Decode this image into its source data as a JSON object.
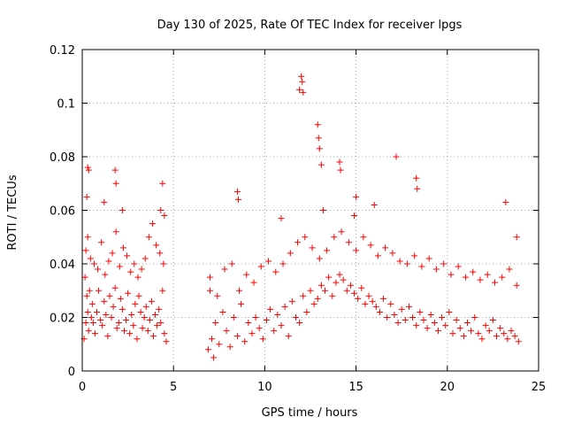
{
  "chart_data": {
    "type": "scatter",
    "title": "Day 130 of 2025, Rate Of TEC Index for receiver lpgs",
    "xlabel": "GPS time / hours",
    "ylabel": "ROTI / TECUs",
    "xlim": [
      0,
      25
    ],
    "ylim": [
      0,
      0.12
    ],
    "xticks": [
      0,
      5,
      10,
      15,
      20,
      25
    ],
    "xtick_labels": [
      "0",
      "5",
      "10",
      "15",
      "20",
      "25"
    ],
    "yticks": [
      0,
      0.02,
      0.04,
      0.06,
      0.08,
      0.1,
      0.12
    ],
    "ytick_labels": [
      "0",
      "0.02",
      "0.04",
      "0.06",
      "0.08",
      "0.1",
      "0.12"
    ],
    "grid": true,
    "marker": "plus",
    "color": "#ff0000",
    "series": [
      {
        "name": "ROTI",
        "x": [
          0.1,
          0.15,
          0.2,
          0.25,
          0.3,
          0.35,
          0.4,
          0.5,
          0.55,
          0.6,
          0.7,
          0.8,
          0.9,
          1.0,
          1.1,
          1.2,
          1.3,
          1.4,
          1.5,
          1.6,
          1.7,
          1.8,
          1.9,
          2.0,
          2.1,
          2.2,
          2.3,
          2.4,
          2.5,
          2.6,
          2.7,
          2.8,
          2.9,
          3.0,
          3.1,
          3.2,
          3.3,
          3.4,
          3.5,
          3.6,
          3.7,
          3.8,
          3.9,
          4.0,
          4.1,
          4.2,
          4.3,
          4.4,
          4.5,
          4.6,
          0.2,
          0.3,
          0.45,
          0.65,
          0.85,
          1.05,
          1.25,
          1.45,
          1.65,
          1.85,
          2.05,
          2.25,
          2.45,
          2.65,
          2.85,
          3.05,
          3.25,
          3.45,
          3.65,
          3.85,
          4.05,
          4.25,
          4.45,
          0.3,
          0.35,
          0.25,
          1.2,
          1.8,
          1.85,
          2.2,
          4.3,
          4.4,
          4.5,
          6.9,
          7.0,
          7.1,
          7.2,
          7.3,
          7.5,
          7.7,
          7.9,
          8.1,
          8.3,
          8.5,
          8.7,
          8.9,
          9.1,
          9.3,
          9.5,
          9.7,
          9.9,
          10.1,
          10.3,
          10.5,
          10.7,
          10.9,
          11.1,
          11.3,
          11.5,
          11.7,
          11.9,
          12.1,
          12.3,
          12.5,
          12.7,
          12.9,
          13.1,
          13.3,
          13.5,
          13.7,
          13.9,
          14.1,
          14.3,
          14.5,
          14.7,
          14.9,
          15.1,
          15.3,
          15.5,
          15.7,
          15.9,
          16.1,
          16.3,
          16.5,
          16.7,
          16.9,
          17.1,
          17.3,
          17.5,
          17.7,
          17.9,
          18.1,
          18.3,
          18.5,
          18.7,
          18.9,
          19.1,
          19.3,
          19.5,
          19.7,
          19.9,
          20.1,
          20.3,
          20.5,
          20.7,
          20.9,
          21.1,
          21.3,
          21.5,
          21.7,
          21.9,
          22.1,
          22.3,
          22.5,
          22.7,
          22.9,
          23.1,
          23.3,
          23.5,
          23.7,
          23.9,
          7.0,
          7.4,
          7.8,
          8.2,
          8.6,
          9.0,
          9.4,
          9.8,
          10.2,
          10.6,
          11.0,
          11.4,
          11.8,
          12.2,
          12.6,
          13.0,
          13.4,
          13.8,
          14.2,
          14.6,
          15.0,
          15.4,
          15.8,
          16.2,
          16.6,
          17.0,
          17.4,
          17.8,
          18.2,
          18.6,
          19.0,
          19.4,
          19.8,
          20.2,
          20.6,
          21.0,
          21.4,
          21.8,
          22.2,
          22.6,
          23.0,
          23.4,
          23.8,
          8.5,
          8.55,
          11.9,
          12.0,
          12.05,
          12.1,
          12.9,
          12.95,
          13.0,
          13.1,
          14.1,
          14.15,
          17.2,
          18.3,
          18.35,
          15.0,
          16.0,
          23.2,
          23.8,
          10.9,
          13.2,
          14.9
        ],
        "y": [
          0.012,
          0.035,
          0.018,
          0.028,
          0.022,
          0.015,
          0.03,
          0.02,
          0.025,
          0.018,
          0.014,
          0.022,
          0.03,
          0.019,
          0.017,
          0.026,
          0.021,
          0.013,
          0.028,
          0.02,
          0.024,
          0.031,
          0.016,
          0.018,
          0.027,
          0.023,
          0.015,
          0.019,
          0.029,
          0.014,
          0.021,
          0.017,
          0.025,
          0.012,
          0.028,
          0.022,
          0.016,
          0.02,
          0.024,
          0.015,
          0.019,
          0.026,
          0.013,
          0.021,
          0.017,
          0.023,
          0.018,
          0.03,
          0.014,
          0.011,
          0.045,
          0.05,
          0.042,
          0.04,
          0.038,
          0.048,
          0.036,
          0.041,
          0.044,
          0.052,
          0.039,
          0.046,
          0.043,
          0.037,
          0.04,
          0.035,
          0.038,
          0.042,
          0.05,
          0.055,
          0.047,
          0.044,
          0.04,
          0.076,
          0.075,
          0.065,
          0.063,
          0.075,
          0.07,
          0.06,
          0.06,
          0.07,
          0.058,
          0.008,
          0.03,
          0.012,
          0.005,
          0.018,
          0.01,
          0.022,
          0.015,
          0.009,
          0.02,
          0.013,
          0.025,
          0.011,
          0.018,
          0.014,
          0.02,
          0.016,
          0.012,
          0.019,
          0.023,
          0.015,
          0.021,
          0.017,
          0.024,
          0.013,
          0.026,
          0.02,
          0.018,
          0.028,
          0.022,
          0.03,
          0.025,
          0.027,
          0.032,
          0.03,
          0.035,
          0.028,
          0.033,
          0.036,
          0.034,
          0.03,
          0.032,
          0.029,
          0.027,
          0.031,
          0.025,
          0.028,
          0.026,
          0.024,
          0.022,
          0.027,
          0.02,
          0.025,
          0.021,
          0.018,
          0.023,
          0.019,
          0.024,
          0.02,
          0.017,
          0.022,
          0.019,
          0.016,
          0.021,
          0.018,
          0.015,
          0.02,
          0.017,
          0.022,
          0.014,
          0.019,
          0.016,
          0.013,
          0.018,
          0.015,
          0.02,
          0.014,
          0.012,
          0.017,
          0.015,
          0.019,
          0.013,
          0.016,
          0.014,
          0.012,
          0.015,
          0.013,
          0.011,
          0.035,
          0.028,
          0.038,
          0.04,
          0.03,
          0.036,
          0.033,
          0.039,
          0.041,
          0.037,
          0.04,
          0.044,
          0.048,
          0.05,
          0.046,
          0.042,
          0.045,
          0.05,
          0.052,
          0.048,
          0.045,
          0.05,
          0.047,
          0.043,
          0.046,
          0.044,
          0.041,
          0.04,
          0.043,
          0.039,
          0.042,
          0.038,
          0.04,
          0.036,
          0.039,
          0.035,
          0.037,
          0.034,
          0.036,
          0.033,
          0.035,
          0.038,
          0.032,
          0.067,
          0.064,
          0.105,
          0.11,
          0.108,
          0.104,
          0.092,
          0.087,
          0.083,
          0.077,
          0.078,
          0.075,
          0.08,
          0.072,
          0.068,
          0.065,
          0.062,
          0.063,
          0.05,
          0.057,
          0.06,
          0.058
        ]
      }
    ]
  }
}
